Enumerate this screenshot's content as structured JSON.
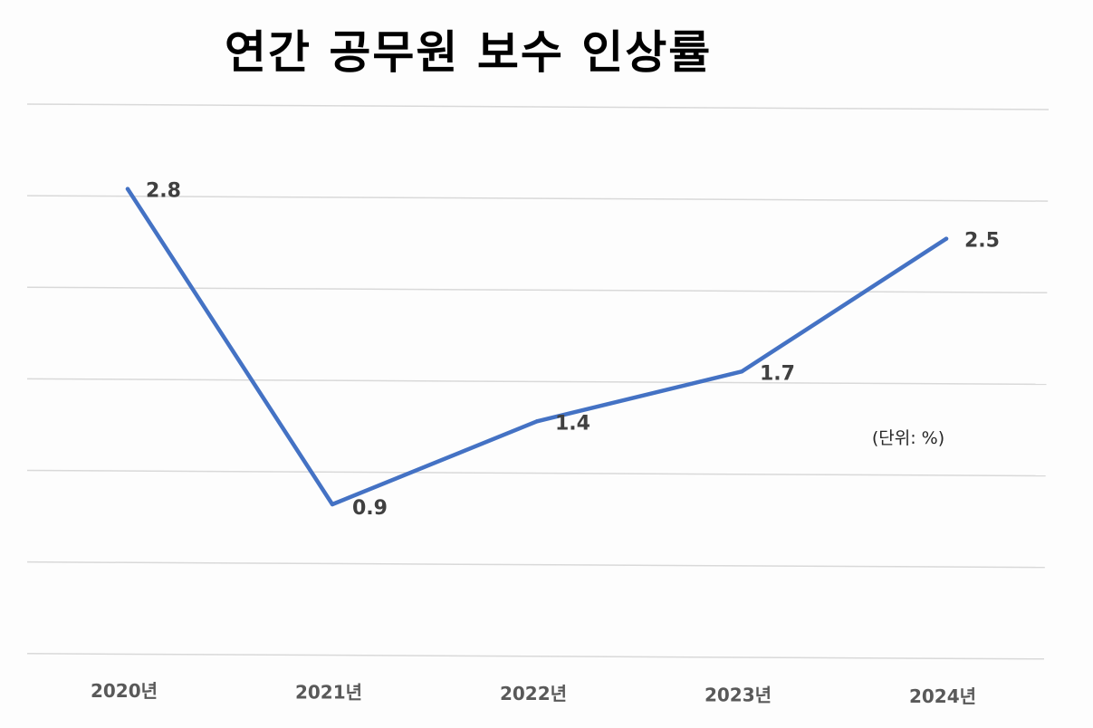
{
  "chart_data": {
    "type": "line",
    "title": "연간 공무원 보수 인상률",
    "unit_note": "(단위: %)",
    "categories": [
      "2020년",
      "2021년",
      "2022년",
      "2023년",
      "2024년"
    ],
    "series": [
      {
        "values": [
          2.8,
          0.9,
          1.4,
          1.7,
          2.5
        ],
        "color": "#4472c4"
      }
    ],
    "data_labels": [
      "2.8",
      "0.9",
      "1.4",
      "1.7",
      "2.5"
    ],
    "ylim": [
      0,
      3.3
    ],
    "grid": true,
    "legend": "none"
  }
}
